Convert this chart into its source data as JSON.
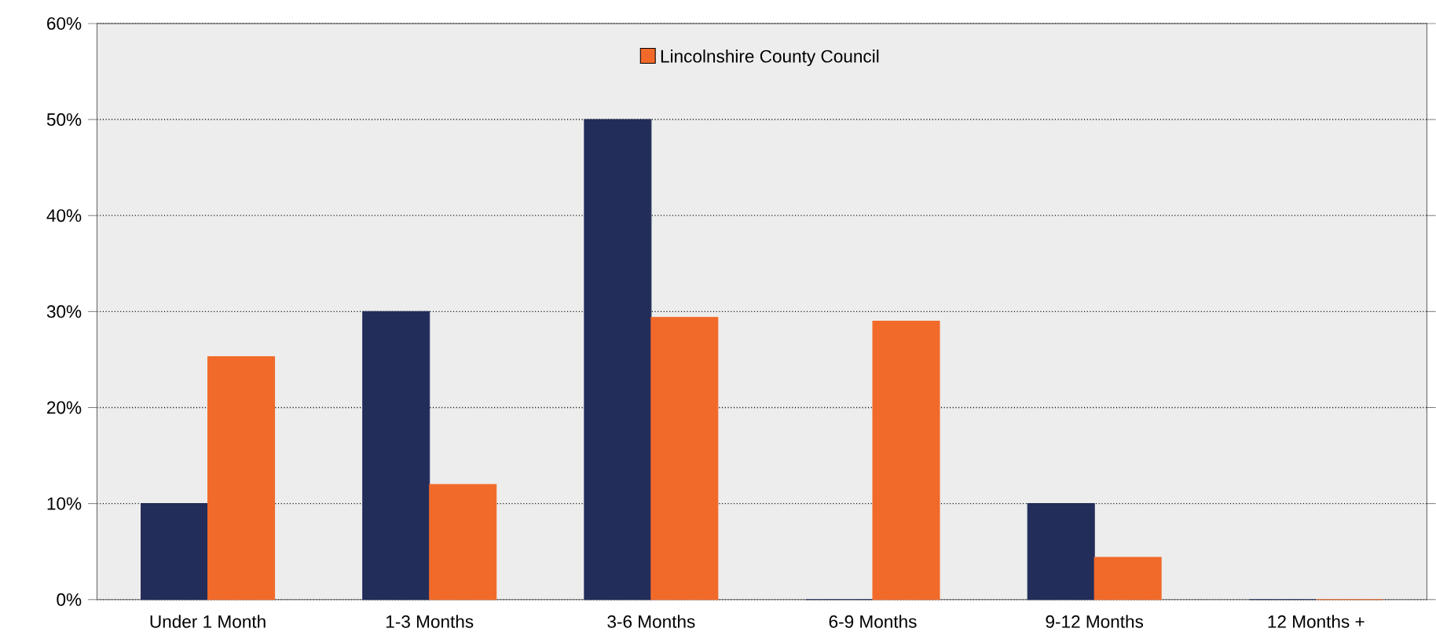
{
  "chart_data": {
    "type": "bar",
    "categories": [
      "Under 1 Month",
      "1-3 Months",
      "3-6 Months",
      "6-9 Months",
      "9-12 Months",
      "12 Months +"
    ],
    "series": [
      {
        "color": "#232d5a",
        "values": [
          10,
          30,
          50,
          0,
          10,
          0
        ]
      },
      {
        "name": "Lincolnshire County Council",
        "color": "#f26a2a",
        "values": [
          25.3,
          12,
          29.4,
          29,
          4.4,
          0
        ]
      }
    ],
    "ylim": [
      0,
      60
    ],
    "yticks": [
      {
        "value": 0,
        "label": "0%"
      },
      {
        "value": 10,
        "label": "10%"
      },
      {
        "value": 20,
        "label": "20%"
      },
      {
        "value": 30,
        "label": "30%"
      },
      {
        "value": 40,
        "label": "40%"
      },
      {
        "value": 50,
        "label": "50%"
      },
      {
        "value": 60,
        "label": "60%"
      }
    ],
    "grid": "y",
    "legend": "top"
  }
}
